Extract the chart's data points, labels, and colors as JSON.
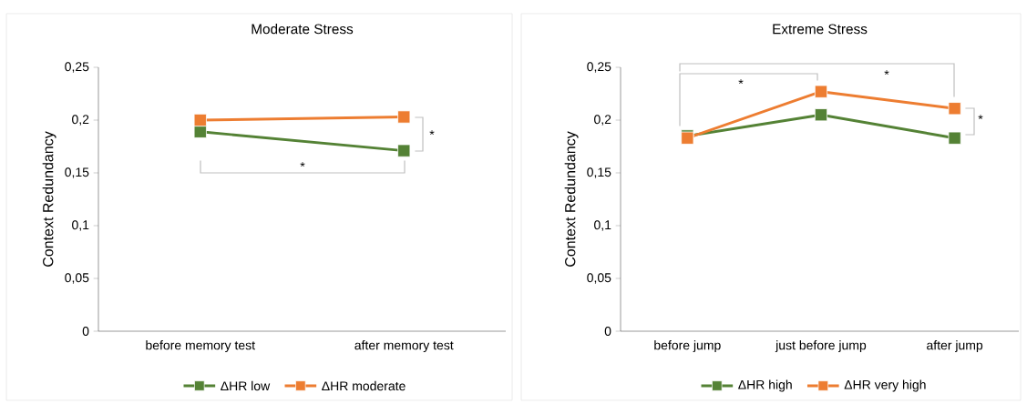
{
  "chart_data": [
    {
      "type": "line",
      "title": "Moderate Stress",
      "ylabel": "Context Redundancy",
      "categories": [
        "before memory test",
        "after memory test"
      ],
      "series": [
        {
          "name": "ΔHR low",
          "color": "#548235",
          "values": [
            0.189,
            0.171
          ]
        },
        {
          "name": "ΔHR moderate",
          "color": "#ed7d31",
          "values": [
            0.2,
            0.203
          ]
        }
      ],
      "ylim": [
        0,
        0.25
      ],
      "yticks": [
        0,
        {
          "value": 0.05,
          "label": "0,05"
        },
        {
          "value": 0.1,
          "label": "0,1"
        },
        {
          "value": 0.15,
          "label": "0,15"
        },
        {
          "value": 0.2,
          "label": "0,2"
        },
        {
          "value": 0.25,
          "label": "0,25"
        }
      ],
      "marker": "square",
      "legend": "bottom",
      "annotations": [
        "*",
        "*"
      ]
    },
    {
      "type": "line",
      "title": "Extreme Stress",
      "ylabel": "Context Redundancy",
      "categories": [
        "before jump",
        "just before jump",
        "after jump"
      ],
      "series": [
        {
          "name": "ΔHR high",
          "color": "#548235",
          "values": [
            0.185,
            0.205,
            0.183
          ]
        },
        {
          "name": "ΔHR very high",
          "color": "#ed7d31",
          "values": [
            0.183,
            0.227,
            0.211
          ]
        }
      ],
      "ylim": [
        0,
        0.25
      ],
      "yticks": [
        0,
        {
          "value": 0.05,
          "label": "0,05"
        },
        {
          "value": 0.1,
          "label": "0,1"
        },
        {
          "value": 0.15,
          "label": "0,15"
        },
        {
          "value": 0.2,
          "label": "0,2"
        },
        {
          "value": 0.25,
          "label": "0,25"
        }
      ],
      "marker": "square",
      "legend": "bottom",
      "annotations": [
        "*",
        "*",
        "*"
      ]
    }
  ]
}
